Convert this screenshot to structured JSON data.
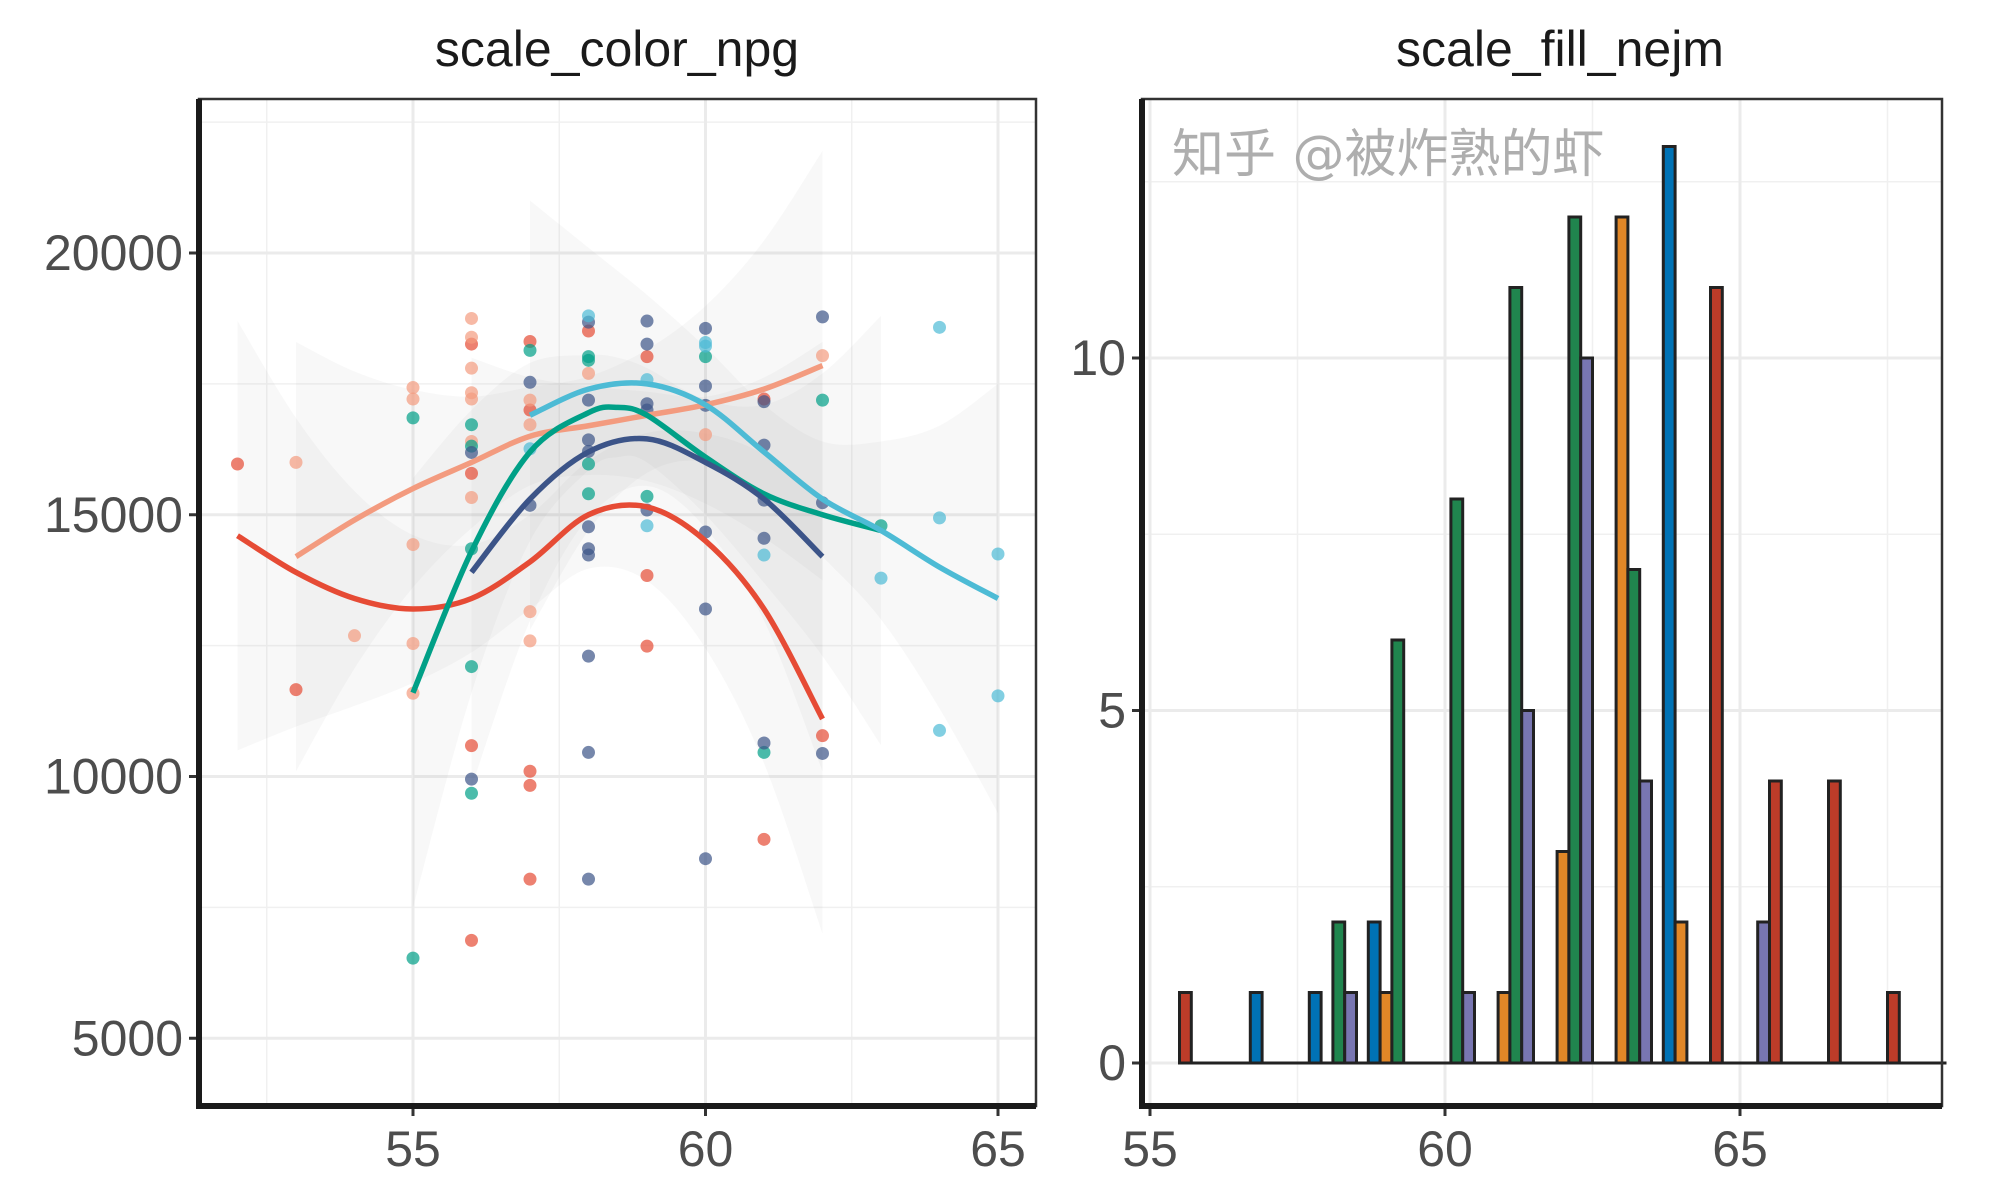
{
  "chart_data": [
    {
      "type": "scatter",
      "title": "scale_color_npg",
      "xlim": [
        51.3,
        65.7
      ],
      "ylim": [
        3700,
        22900
      ],
      "x_ticks": [
        "55",
        "60",
        "65"
      ],
      "y_ticks": [
        "5000",
        "10000",
        "15000",
        "20000"
      ],
      "x_tick_values": [
        55,
        60,
        65
      ],
      "y_tick_values": [
        5000,
        10000,
        15000,
        20000
      ],
      "grid": true,
      "smooth": "loess with confidence ribbon",
      "point_alpha": 0.7,
      "series": [
        {
          "color": "#E64B35",
          "points": [
            [
              52,
              15970
            ],
            [
              53,
              11660
            ],
            [
              56,
              18260
            ],
            [
              56,
              15790
            ],
            [
              56,
              10590
            ],
            [
              56,
              6870
            ],
            [
              57,
              18310
            ],
            [
              57,
              17000
            ],
            [
              57,
              10100
            ],
            [
              57,
              9830
            ],
            [
              57,
              8040
            ],
            [
              58,
              18510
            ],
            [
              59,
              18020
            ],
            [
              59,
              13840
            ],
            [
              59,
              12490
            ],
            [
              61,
              17210
            ],
            [
              61,
              8800
            ],
            [
              62,
              10780
            ]
          ],
          "curve": [
            [
              52,
              14600
            ],
            [
              53,
              13900
            ],
            [
              54,
              13400
            ],
            [
              55,
              13200
            ],
            [
              56,
              13400
            ],
            [
              57,
              14100
            ],
            [
              58,
              15000
            ],
            [
              59,
              15150
            ],
            [
              60,
              14500
            ],
            [
              61,
              13200
            ],
            [
              62,
              11100
            ]
          ]
        },
        {
          "color": "#F39B7F",
          "points": [
            [
              53,
              16000
            ],
            [
              54,
              12690
            ],
            [
              55,
              17430
            ],
            [
              55,
              17210
            ],
            [
              55,
              14430
            ],
            [
              55,
              12540
            ],
            [
              55,
              11590
            ],
            [
              56,
              18750
            ],
            [
              56,
              18390
            ],
            [
              56,
              17800
            ],
            [
              56,
              17330
            ],
            [
              56,
              17210
            ],
            [
              56,
              16400
            ],
            [
              56,
              15330
            ],
            [
              57,
              17190
            ],
            [
              57,
              16720
            ],
            [
              57,
              13150
            ],
            [
              57,
              12590
            ],
            [
              58,
              17700
            ],
            [
              60,
              16530
            ],
            [
              62,
              18040
            ]
          ],
          "curve": [
            [
              53,
              14200
            ],
            [
              54,
              14900
            ],
            [
              55,
              15500
            ],
            [
              56,
              16000
            ],
            [
              57,
              16500
            ],
            [
              58,
              16700
            ],
            [
              59,
              16900
            ],
            [
              60,
              17100
            ],
            [
              61,
              17400
            ],
            [
              62,
              17850
            ]
          ]
        },
        {
          "color": "#00A087",
          "points": [
            [
              55,
              16850
            ],
            [
              55,
              6530
            ],
            [
              56,
              16720
            ],
            [
              56,
              16310
            ],
            [
              56,
              14350
            ],
            [
              56,
              12100
            ],
            [
              56,
              9680
            ],
            [
              57,
              18140
            ],
            [
              58,
              18020
            ],
            [
              58,
              17950
            ],
            [
              58,
              15970
            ],
            [
              58,
              15400
            ],
            [
              59,
              15350
            ],
            [
              60,
              18020
            ],
            [
              61,
              10460
            ],
            [
              62,
              17190
            ],
            [
              63,
              14790
            ]
          ],
          "curve": [
            [
              55,
              11600
            ],
            [
              56,
              14300
            ],
            [
              57,
              16200
            ],
            [
              58,
              16950
            ],
            [
              58.5,
              17050
            ],
            [
              59,
              16900
            ],
            [
              60,
              16100
            ],
            [
              61,
              15400
            ],
            [
              62,
              15000
            ],
            [
              63,
              14700
            ]
          ]
        },
        {
          "color": "#3C5488",
          "points": [
            [
              56,
              16190
            ],
            [
              56,
              9950
            ],
            [
              57,
              17530
            ],
            [
              57,
              15180
            ],
            [
              58,
              18680
            ],
            [
              58,
              17190
            ],
            [
              58,
              16430
            ],
            [
              58,
              16210
            ],
            [
              58,
              14770
            ],
            [
              58,
              14350
            ],
            [
              58,
              14230
            ],
            [
              58,
              12300
            ],
            [
              58,
              10460
            ],
            [
              58,
              8040
            ],
            [
              59,
              18700
            ],
            [
              59,
              18260
            ],
            [
              59,
              17120
            ],
            [
              59,
              17000
            ],
            [
              59,
              15090
            ],
            [
              60,
              18560
            ],
            [
              60,
              17460
            ],
            [
              60,
              17090
            ],
            [
              60,
              14670
            ],
            [
              60,
              13200
            ],
            [
              60,
              8430
            ],
            [
              61,
              17160
            ],
            [
              61,
              16330
            ],
            [
              61,
              15280
            ],
            [
              61,
              14550
            ],
            [
              61,
              10640
            ],
            [
              62,
              18780
            ],
            [
              62,
              15230
            ],
            [
              62,
              10440
            ]
          ],
          "curve": [
            [
              56,
              13900
            ],
            [
              57,
              15300
            ],
            [
              58,
              16200
            ],
            [
              59,
              16450
            ],
            [
              60,
              16000
            ],
            [
              61,
              15300
            ],
            [
              62,
              14200
            ]
          ]
        },
        {
          "color": "#4DBBD5",
          "points": [
            [
              57,
              16260
            ],
            [
              58,
              18800
            ],
            [
              59,
              17580
            ],
            [
              59,
              14790
            ],
            [
              60,
              18290
            ],
            [
              60,
              18220
            ],
            [
              61,
              14230
            ],
            [
              63,
              13790
            ],
            [
              64,
              18580
            ],
            [
              64,
              14940
            ],
            [
              64,
              10880
            ],
            [
              65,
              14250
            ],
            [
              65,
              11540
            ]
          ],
          "curve": [
            [
              57,
              16900
            ],
            [
              58,
              17400
            ],
            [
              59,
              17500
            ],
            [
              60,
              17100
            ],
            [
              61,
              16200
            ],
            [
              62,
              15300
            ],
            [
              63,
              14700
            ],
            [
              64,
              14000
            ],
            [
              65,
              13400
            ]
          ]
        }
      ]
    },
    {
      "type": "bar",
      "title": "scale_fill_nejm",
      "subtype": "histogram, dodged",
      "xlim": [
        54.87,
        68.43
      ],
      "ylim": [
        -0.62,
        13.67
      ],
      "x_ticks": [
        "55",
        "60",
        "65"
      ],
      "y_ticks": [
        "0",
        "5",
        "10"
      ],
      "x_tick_values": [
        55,
        60,
        65
      ],
      "y_tick_values": [
        0,
        5,
        10
      ],
      "grid": true,
      "bin_centers": [
        56,
        57,
        58,
        59,
        60,
        61,
        62,
        63,
        64,
        65,
        66,
        67,
        68
      ],
      "series": [
        {
          "color": "#BC3C29",
          "values": [
            1,
            0,
            0,
            0,
            0,
            0,
            0,
            0,
            0,
            11,
            4,
            4,
            1
          ]
        },
        {
          "color": "#0072B5",
          "values": [
            0,
            1,
            1,
            2,
            0,
            0,
            0,
            0,
            13,
            0,
            0,
            0,
            0
          ]
        },
        {
          "color": "#E18727",
          "values": [
            0,
            0,
            0,
            1,
            0,
            1,
            3,
            12,
            2,
            0,
            0,
            0,
            0
          ]
        },
        {
          "color": "#20854E",
          "values": [
            0,
            0,
            2,
            6,
            8,
            11,
            12,
            7,
            0,
            0,
            0,
            0,
            0
          ]
        },
        {
          "color": "#7876B1",
          "values": [
            0,
            0,
            1,
            0,
            1,
            5,
            10,
            4,
            0,
            2,
            0,
            0,
            0
          ]
        }
      ],
      "outline_color": "#222222"
    }
  ],
  "watermark": "知乎 @被炸熟的虾"
}
